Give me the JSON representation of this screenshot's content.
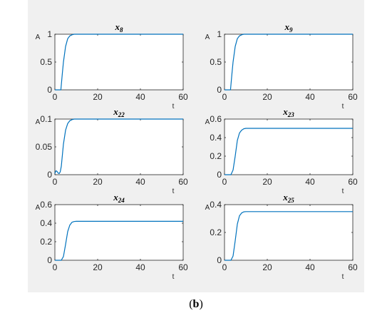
{
  "figure": {
    "caption_open": "(",
    "caption_label": "b",
    "caption_close": ")",
    "line_color": "#0072bd",
    "axes_color": "#262626",
    "panel_color": "#f0f0f0"
  },
  "chart_data": [
    {
      "type": "line",
      "title_base": "x",
      "title_sub": "8",
      "xlabel": "t",
      "ylabel": "A",
      "xlim": [
        0,
        60
      ],
      "ylim": [
        0,
        1
      ],
      "xticks": [
        0,
        20,
        40,
        60
      ],
      "xtick_labels": [
        "0",
        "20",
        "40",
        "60"
      ],
      "yticks": [
        0,
        0.5,
        1
      ],
      "ytick_labels": [
        "0",
        "0.5",
        "1"
      ],
      "grid": false,
      "series": [
        {
          "x": [
            0,
            2.8,
            3.5,
            4,
            5,
            6,
            7,
            8,
            9,
            10,
            15,
            30,
            60
          ],
          "y": [
            0,
            0,
            0.3,
            0.5,
            0.78,
            0.92,
            0.97,
            0.99,
            1,
            1,
            1,
            1,
            1
          ]
        }
      ]
    },
    {
      "type": "line",
      "title_base": "x",
      "title_sub": "9",
      "xlabel": "t",
      "ylabel": "A",
      "xlim": [
        0,
        60
      ],
      "ylim": [
        0,
        1
      ],
      "xticks": [
        0,
        20,
        40,
        60
      ],
      "xtick_labels": [
        "0",
        "20",
        "40",
        "60"
      ],
      "yticks": [
        0,
        0.5,
        1
      ],
      "ytick_labels": [
        "0",
        "0.5",
        "1"
      ],
      "grid": false,
      "series": [
        {
          "x": [
            0,
            2.8,
            3.5,
            4,
            5,
            6,
            7,
            8,
            9,
            10,
            15,
            30,
            60
          ],
          "y": [
            0,
            0,
            0.3,
            0.5,
            0.78,
            0.92,
            0.97,
            0.99,
            1,
            1,
            1,
            1,
            1
          ]
        }
      ]
    },
    {
      "type": "line",
      "title_base": "x",
      "title_sub": "22",
      "xlabel": "t",
      "ylabel": "A",
      "xlim": [
        0,
        60
      ],
      "ylim": [
        0,
        0.1
      ],
      "xticks": [
        0,
        20,
        40,
        60
      ],
      "xtick_labels": [
        "0",
        "20",
        "40",
        "60"
      ],
      "yticks": [
        0,
        0.05,
        0.1
      ],
      "ytick_labels": [
        "0",
        "0.05",
        "0.1"
      ],
      "grid": false,
      "series": [
        {
          "x": [
            0,
            0.5,
            1,
            1.5,
            2,
            2.5,
            3,
            3.5,
            4,
            5,
            6,
            7,
            8,
            9,
            10,
            15,
            30,
            60
          ],
          "y": [
            0.002,
            0.007,
            0.006,
            0.003,
            0.002,
            0.005,
            0.015,
            0.035,
            0.055,
            0.08,
            0.092,
            0.097,
            0.099,
            0.1,
            0.1,
            0.1,
            0.1,
            0.1
          ]
        }
      ]
    },
    {
      "type": "line",
      "title_base": "x",
      "title_sub": "23",
      "xlabel": "t",
      "ylabel": "A",
      "xlim": [
        0,
        60
      ],
      "ylim": [
        0,
        0.6
      ],
      "xticks": [
        0,
        20,
        40,
        60
      ],
      "xtick_labels": [
        "0",
        "20",
        "40",
        "60"
      ],
      "yticks": [
        0,
        0.2,
        0.4,
        0.6
      ],
      "ytick_labels": [
        "0",
        "0.2",
        "0.4",
        "0.6"
      ],
      "grid": false,
      "series": [
        {
          "x": [
            0,
            3,
            4,
            5,
            6,
            7,
            8,
            9,
            10,
            12,
            15,
            30,
            60
          ],
          "y": [
            0,
            0,
            0.05,
            0.2,
            0.37,
            0.45,
            0.48,
            0.495,
            0.5,
            0.5,
            0.5,
            0.5,
            0.5
          ]
        }
      ]
    },
    {
      "type": "line",
      "title_base": "x",
      "title_sub": "24",
      "xlabel": "t",
      "ylabel": "A",
      "xlim": [
        0,
        60
      ],
      "ylim": [
        0,
        0.6
      ],
      "xticks": [
        0,
        20,
        40,
        60
      ],
      "xtick_labels": [
        "0",
        "20",
        "40",
        "60"
      ],
      "yticks": [
        0,
        0.2,
        0.4,
        0.6
      ],
      "ytick_labels": [
        "0",
        "0.2",
        "0.4",
        "0.6"
      ],
      "grid": false,
      "series": [
        {
          "x": [
            0,
            3,
            4,
            5,
            6,
            7,
            8,
            9,
            10,
            12,
            15,
            30,
            60
          ],
          "y": [
            0,
            0,
            0.04,
            0.17,
            0.31,
            0.38,
            0.41,
            0.418,
            0.42,
            0.42,
            0.42,
            0.42,
            0.42
          ]
        }
      ]
    },
    {
      "type": "line",
      "title_base": "x",
      "title_sub": "25",
      "xlabel": "t",
      "ylabel": "A",
      "xlim": [
        0,
        60
      ],
      "ylim": [
        0,
        0.4
      ],
      "xticks": [
        0,
        20,
        40,
        60
      ],
      "xtick_labels": [
        "0",
        "20",
        "40",
        "60"
      ],
      "yticks": [
        0,
        0.2,
        0.4
      ],
      "ytick_labels": [
        "0",
        "0.2",
        "0.4"
      ],
      "grid": false,
      "series": [
        {
          "x": [
            0,
            3,
            4,
            5,
            6,
            7,
            8,
            9,
            10,
            12,
            15,
            30,
            60
          ],
          "y": [
            0,
            0,
            0.03,
            0.14,
            0.26,
            0.32,
            0.34,
            0.348,
            0.35,
            0.35,
            0.35,
            0.35,
            0.35
          ]
        }
      ]
    }
  ]
}
